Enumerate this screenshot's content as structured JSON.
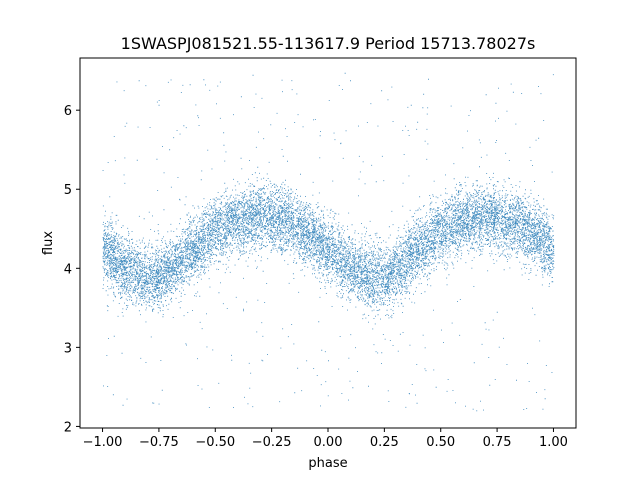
{
  "chart_data": {
    "type": "scatter",
    "title": "1SWASPJ081521.55-113617.9 Period 15713.78027s",
    "xlabel": "phase",
    "ylabel": "flux",
    "xlim": [
      -1.1,
      1.1
    ],
    "ylim": [
      1.98,
      6.66
    ],
    "xticks": [
      -1.0,
      -0.75,
      -0.5,
      -0.25,
      0.0,
      0.25,
      0.5,
      0.75,
      1.0
    ],
    "xtick_labels": [
      "−1.00",
      "−0.75",
      "−0.50",
      "−0.25",
      "0.00",
      "0.25",
      "0.50",
      "0.75",
      "1.00"
    ],
    "yticks": [
      2,
      3,
      4,
      5,
      6
    ],
    "ytick_labels": [
      "2",
      "3",
      "4",
      "5",
      "6"
    ],
    "grid": false,
    "marker_color": "#1f77b4",
    "series": [
      {
        "model": {
          "description_points_phase": [
            -1.0,
            -0.9,
            -0.8,
            -0.75,
            -0.7,
            -0.6,
            -0.5,
            -0.4,
            -0.3,
            -0.2,
            -0.1,
            0.0,
            0.1,
            0.2,
            0.25,
            0.3,
            0.4,
            0.5,
            0.6,
            0.7,
            0.8,
            0.9,
            1.0
          ],
          "flux": [
            4.25,
            4.0,
            3.88,
            3.9,
            4.0,
            4.25,
            4.48,
            4.6,
            4.65,
            4.6,
            4.45,
            4.25,
            4.0,
            3.88,
            3.9,
            4.0,
            4.25,
            4.48,
            4.6,
            4.65,
            4.6,
            4.45,
            4.25
          ]
        },
        "scatter_sigma": 0.2,
        "point_count": 14000,
        "outlier_count": 500,
        "outlier_range": [
          2.2,
          6.5
        ]
      }
    ]
  }
}
